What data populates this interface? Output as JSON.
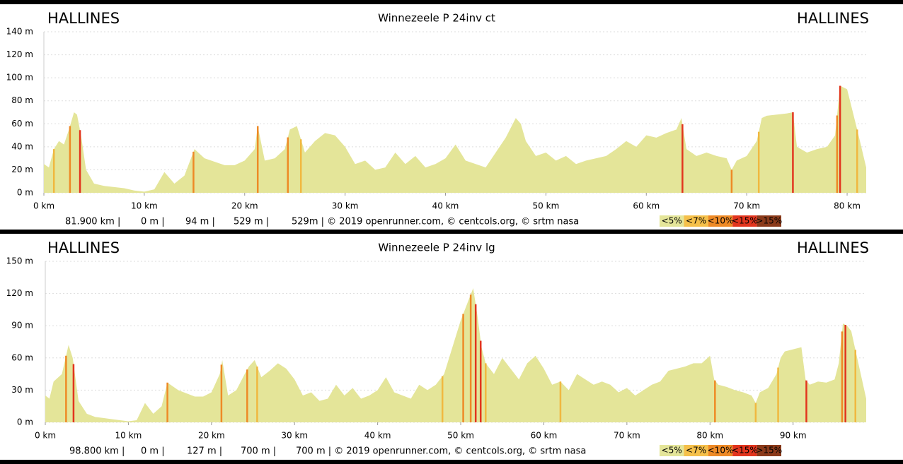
{
  "chart_data": [
    {
      "type": "area",
      "title": "Winnezeele P 24inv ct",
      "start_label": "HALLINES",
      "end_label": "HALLINES",
      "color": "#e4e599",
      "grid": true,
      "xlim": [
        0,
        81.9
      ],
      "ylim": [
        0,
        140
      ],
      "xticks": [
        {
          "value": 0,
          "label": "0 km"
        },
        {
          "value": 10,
          "label": "10 km"
        },
        {
          "value": 20,
          "label": "20 km"
        },
        {
          "value": 30,
          "label": "30 km"
        },
        {
          "value": 40,
          "label": "40 km"
        },
        {
          "value": 50,
          "label": "50 km"
        },
        {
          "value": 60,
          "label": "60 km"
        },
        {
          "value": 70,
          "label": "70 km"
        },
        {
          "value": 80,
          "label": "80 km"
        }
      ],
      "yticks": [
        {
          "value": 0,
          "label": "0 m"
        },
        {
          "value": 20,
          "label": "20 m"
        },
        {
          "value": 40,
          "label": "40 m"
        },
        {
          "value": 60,
          "label": "60 m"
        },
        {
          "value": 80,
          "label": "80 m"
        },
        {
          "value": 100,
          "label": "100 m"
        },
        {
          "value": 120,
          "label": "120 m"
        },
        {
          "value": 140,
          "label": "140 m"
        }
      ],
      "x": [
        0,
        0.5,
        1,
        1.5,
        2,
        2.5,
        3,
        3.3,
        3.7,
        4.2,
        5,
        6,
        7,
        8,
        9,
        10,
        11,
        12,
        13,
        14,
        15,
        16,
        17,
        18,
        19,
        20,
        21,
        21.3,
        22,
        23,
        24,
        24.5,
        25.2,
        26,
        27,
        28,
        29,
        30,
        31,
        32,
        33,
        34,
        35,
        36,
        37,
        38,
        39,
        40,
        41,
        42,
        43,
        44,
        45,
        46,
        47,
        47.5,
        48,
        49,
        50,
        51,
        52,
        53,
        54,
        55,
        56,
        57,
        58,
        59,
        60,
        61,
        62,
        63,
        63.5,
        64,
        65,
        66,
        67,
        68,
        68.5,
        69,
        70,
        71,
        71.5,
        72,
        73,
        74,
        74.6,
        75,
        76,
        77,
        78,
        78.8,
        79.3,
        80,
        81,
        81.9
      ],
      "values": [
        25,
        22,
        38,
        45,
        42,
        55,
        70,
        68,
        50,
        20,
        8,
        6,
        5,
        4,
        2,
        1,
        3,
        18,
        8,
        15,
        38,
        30,
        27,
        24,
        24,
        28,
        38,
        58,
        28,
        30,
        38,
        55,
        58,
        35,
        45,
        52,
        50,
        40,
        25,
        28,
        20,
        22,
        35,
        25,
        32,
        22,
        25,
        30,
        42,
        28,
        25,
        22,
        35,
        48,
        65,
        60,
        45,
        32,
        35,
        28,
        32,
        25,
        28,
        30,
        32,
        38,
        45,
        40,
        50,
        48,
        52,
        55,
        65,
        38,
        32,
        35,
        32,
        30,
        20,
        28,
        32,
        45,
        65,
        67,
        68,
        69,
        70,
        40,
        35,
        38,
        40,
        50,
        93,
        90,
        55,
        22
      ],
      "steep": [
        {
          "x": 1,
          "color": "#f0b840"
        },
        {
          "x": 2.6,
          "color": "#ee8a26"
        },
        {
          "x": 3.6,
          "color": "#e2351e"
        },
        {
          "x": 14.9,
          "color": "#ee8a26"
        },
        {
          "x": 21.3,
          "color": "#ee8a26"
        },
        {
          "x": 24.3,
          "color": "#ee8a26"
        },
        {
          "x": 25.6,
          "color": "#f0b840"
        },
        {
          "x": 63.6,
          "color": "#e2351e"
        },
        {
          "x": 68.5,
          "color": "#ee8a26"
        },
        {
          "x": 71.2,
          "color": "#f0b840"
        },
        {
          "x": 74.6,
          "color": "#e2351e"
        },
        {
          "x": 79,
          "color": "#ee8a26"
        },
        {
          "x": 79.3,
          "color": "#e2351e"
        },
        {
          "x": 81,
          "color": "#f0b840"
        }
      ],
      "footer": [
        "81.900 km |",
        "0 m |",
        "94 m |",
        "529 m |",
        "529m | © 2019 openrunner.com, © centcols.org, © srtm nasa"
      ],
      "legend": {
        "labels": [
          "<5%",
          "<7%",
          "<10%",
          "<15%",
          ">15%"
        ],
        "colors": [
          "#e4e599",
          "#f5c04a",
          "#ee8a26",
          "#e2351e",
          "#8b3a1a"
        ]
      }
    },
    {
      "type": "area",
      "title": "Winnezeele P 24inv lg",
      "start_label": "HALLINES",
      "end_label": "HALLINES",
      "color": "#e4e599",
      "grid": true,
      "xlim": [
        0,
        98.8
      ],
      "ylim": [
        0,
        150
      ],
      "xticks": [
        {
          "value": 0,
          "label": "0 km"
        },
        {
          "value": 10,
          "label": "10 km"
        },
        {
          "value": 20,
          "label": "20 km"
        },
        {
          "value": 30,
          "label": "30 km"
        },
        {
          "value": 40,
          "label": "40 km"
        },
        {
          "value": 50,
          "label": "50 km"
        },
        {
          "value": 60,
          "label": "60 km"
        },
        {
          "value": 70,
          "label": "70 km"
        },
        {
          "value": 80,
          "label": "80 km"
        },
        {
          "value": 90,
          "label": "90 km"
        }
      ],
      "yticks": [
        {
          "value": 0,
          "label": "0 m"
        },
        {
          "value": 30,
          "label": "30 m"
        },
        {
          "value": 60,
          "label": "60 m"
        },
        {
          "value": 90,
          "label": "90 m"
        },
        {
          "value": 120,
          "label": "120 m"
        },
        {
          "value": 150,
          "label": "150 m"
        }
      ],
      "x": [
        0,
        0.5,
        1,
        2,
        2.5,
        2.8,
        3.3,
        4,
        5,
        6,
        7,
        8,
        9,
        10,
        11,
        12,
        13,
        14,
        14.7,
        16,
        17,
        18,
        19,
        20,
        21,
        21.3,
        22,
        23,
        24,
        24.5,
        25.2,
        26,
        27,
        28,
        29,
        30,
        31,
        32,
        33,
        34,
        35,
        36,
        37,
        38,
        39,
        40,
        41,
        42,
        43,
        44,
        45,
        46,
        47,
        48,
        49,
        50,
        51,
        51.5,
        52,
        52.5,
        53,
        54,
        55,
        56,
        57,
        58,
        59,
        60,
        61,
        62,
        63,
        64,
        65,
        66,
        67,
        68,
        69,
        70,
        71,
        72,
        73,
        74,
        75,
        76,
        77,
        78,
        79,
        80,
        80.5,
        81,
        82,
        83,
        84,
        85,
        85.5,
        86,
        87,
        88,
        88.5,
        89,
        90,
        91,
        91.5,
        92,
        93,
        94,
        95,
        95.5,
        96,
        96.5,
        97,
        98,
        98.8
      ],
      "values": [
        25,
        22,
        38,
        45,
        62,
        72,
        60,
        20,
        8,
        5,
        4,
        3,
        2,
        1,
        2,
        18,
        8,
        15,
        37,
        30,
        27,
        24,
        24,
        28,
        45,
        58,
        25,
        30,
        45,
        52,
        58,
        42,
        48,
        55,
        50,
        40,
        25,
        28,
        20,
        22,
        35,
        25,
        32,
        22,
        25,
        30,
        42,
        28,
        25,
        22,
        35,
        30,
        35,
        45,
        70,
        95,
        115,
        125,
        100,
        70,
        55,
        45,
        60,
        50,
        40,
        55,
        62,
        50,
        35,
        38,
        30,
        45,
        40,
        35,
        38,
        35,
        28,
        32,
        25,
        30,
        35,
        38,
        48,
        50,
        52,
        55,
        55,
        62,
        40,
        35,
        33,
        30,
        28,
        25,
        18,
        28,
        32,
        45,
        60,
        66,
        68,
        70,
        40,
        35,
        38,
        37,
        40,
        55,
        92,
        90,
        85,
        50,
        22
      ],
      "steep": [
        {
          "x": 2.5,
          "color": "#ee8a26"
        },
        {
          "x": 3.4,
          "color": "#e2351e"
        },
        {
          "x": 14.7,
          "color": "#ee8a26"
        },
        {
          "x": 21.2,
          "color": "#ee8a26"
        },
        {
          "x": 24.3,
          "color": "#ee8a26"
        },
        {
          "x": 25.5,
          "color": "#f0b840"
        },
        {
          "x": 47.8,
          "color": "#f0b840"
        },
        {
          "x": 50.3,
          "color": "#ee8a26"
        },
        {
          "x": 51.2,
          "color": "#ee8a26"
        },
        {
          "x": 51.8,
          "color": "#e2351e"
        },
        {
          "x": 52.4,
          "color": "#e2351e"
        },
        {
          "x": 53,
          "color": "#f0b840"
        },
        {
          "x": 62,
          "color": "#f0b840"
        },
        {
          "x": 80.6,
          "color": "#ee8a26"
        },
        {
          "x": 85.5,
          "color": "#f0b840"
        },
        {
          "x": 88.2,
          "color": "#f0b840"
        },
        {
          "x": 91.6,
          "color": "#e2351e"
        },
        {
          "x": 95.9,
          "color": "#ee8a26"
        },
        {
          "x": 96.3,
          "color": "#e2351e"
        },
        {
          "x": 97.5,
          "color": "#f0b840"
        }
      ],
      "footer": [
        "98.800 km |",
        "0 m |",
        "127 m |",
        "700 m |",
        "700 m | © 2019 openrunner.com, © centcols.org, © srtm nasa"
      ],
      "legend": {
        "labels": [
          "<5%",
          "<7%",
          "<10%",
          "<15%",
          ">15%"
        ],
        "colors": [
          "#e4e599",
          "#f5c04a",
          "#ee8a26",
          "#e2351e",
          "#8b3a1a"
        ]
      }
    }
  ]
}
